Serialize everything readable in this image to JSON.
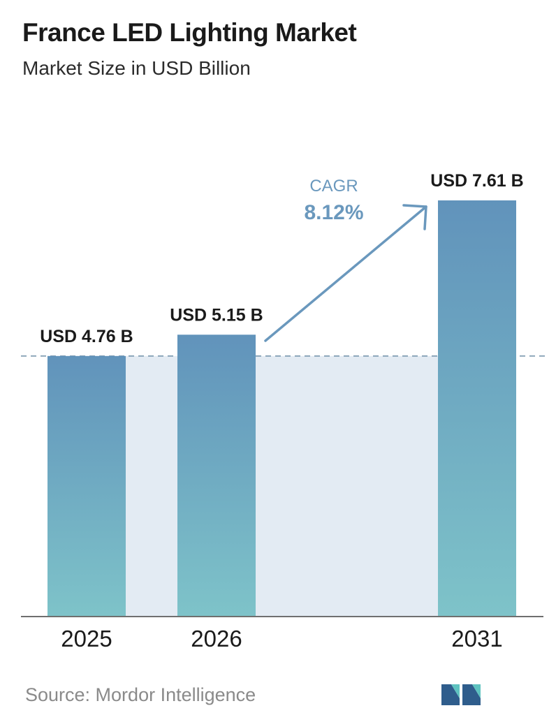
{
  "header": {
    "title": "France LED Lighting Market",
    "subtitle": "Market Size in USD Billion"
  },
  "chart_data": {
    "type": "bar",
    "categories": [
      "2025",
      "2026",
      "2031"
    ],
    "values": [
      4.76,
      5.15,
      7.61
    ],
    "value_labels": [
      "USD 4.76 B",
      "USD 5.15 B",
      "USD 7.61 B"
    ],
    "ylim": [
      0,
      7.61
    ],
    "grid": false,
    "legend": "none",
    "annotations": {
      "cagr_label": "CAGR",
      "cagr_value": "8.12%",
      "reference_line_value": 4.76
    },
    "colors": {
      "bar_top": "#6193bb",
      "bar_bottom": "#7ec3c9",
      "band": "#e3ebf3",
      "arrow": "#6a98bd",
      "cagr_label": "#6a98bd",
      "cagr_value": "#6a98bd",
      "dashed_line": "#6f8fa8",
      "axis": "#6f6f6f"
    }
  },
  "footer": {
    "source": "Source:  Mordor Intelligence",
    "logo_icon": "mordor-intelligence-logo-icon"
  }
}
